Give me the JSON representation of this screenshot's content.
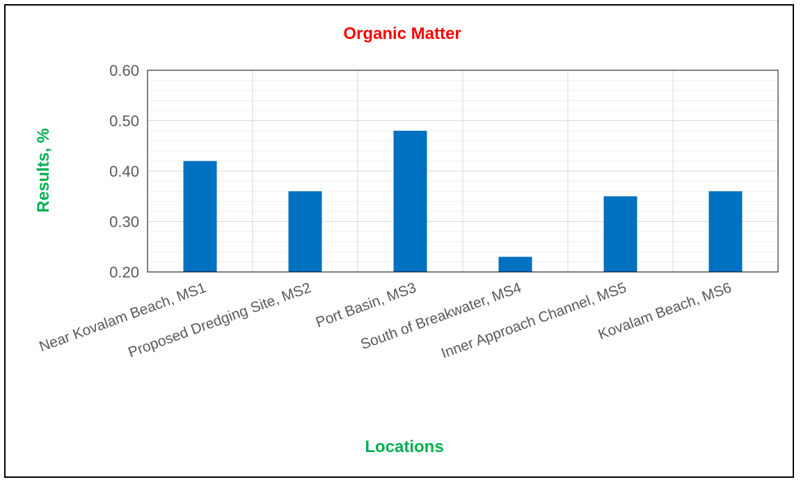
{
  "chart_data": {
    "type": "bar",
    "title": "Organic Matter",
    "xlabel": "Locations",
    "ylabel": "Results, %",
    "categories": [
      "Near Kovalam Beach, MS1",
      "Proposed Dredging Site, MS2",
      "Port Basin, MS3",
      "South of Breakwater, MS4",
      "Inner Approach Channel, MS5",
      "Kovalam Beach, MS6"
    ],
    "values": [
      0.42,
      0.36,
      0.48,
      0.23,
      0.35,
      0.36
    ],
    "ylim": [
      0.2,
      0.6
    ],
    "yticks": [
      "0.20",
      "0.30",
      "0.40",
      "0.50",
      "0.60"
    ],
    "grid": true,
    "colors": {
      "bar": "#0070C0",
      "title": "#FF0000",
      "axis_titles": "#00B050",
      "gridline": "#D9D9D9"
    }
  }
}
